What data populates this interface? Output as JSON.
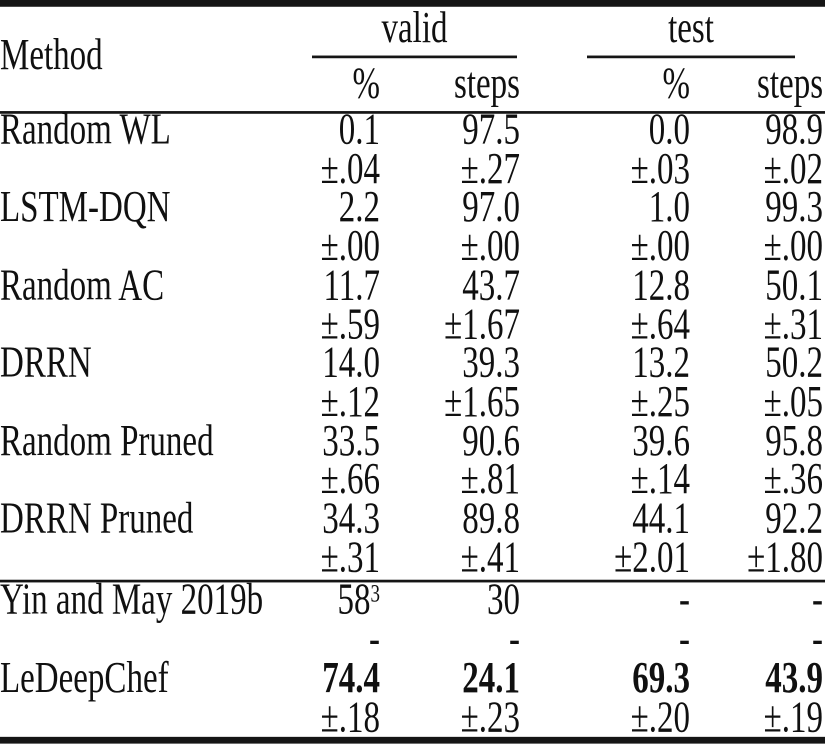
{
  "page": {
    "background": "#ffffff",
    "text_color": "#101010",
    "rule_color": "#151515"
  },
  "table": {
    "header": {
      "method_label": "Method",
      "group_valid_label": "valid",
      "group_test_label": "test",
      "sub_valid_pct": "%",
      "sub_valid_steps": "steps",
      "sub_test_pct": "%",
      "sub_test_steps": "steps"
    },
    "columns": [
      "Method",
      "valid %",
      "valid steps",
      "test %",
      "test steps"
    ],
    "sections": [
      {
        "rows": [
          {
            "method": "Random WL",
            "cells": [
              "0.1",
              "97.5",
              "0.0",
              "98.9"
            ]
          },
          {
            "method": "",
            "cells": [
              "±.04",
              "±.27",
              "±.03",
              "±.02"
            ]
          },
          {
            "method": "LSTM-DQN",
            "cells": [
              "2.2",
              "97.0",
              "1.0",
              "99.3"
            ]
          },
          {
            "method": "",
            "cells": [
              "±.00",
              "±.00",
              "±.00",
              "±.00"
            ]
          },
          {
            "method": "Random AC",
            "cells": [
              "11.7",
              "43.7",
              "12.8",
              "50.1"
            ]
          },
          {
            "method": "",
            "cells": [
              "±.59",
              "±1.67",
              "±.64",
              "±.31"
            ]
          },
          {
            "method": "DRRN",
            "cells": [
              "14.0",
              "39.3",
              "13.2",
              "50.2"
            ]
          },
          {
            "method": "",
            "cells": [
              "±.12",
              "±1.65",
              "±.25",
              "±.05"
            ]
          },
          {
            "method": "Random Pruned",
            "cells": [
              "33.5",
              "90.6",
              "39.6",
              "95.8"
            ]
          },
          {
            "method": "",
            "cells": [
              "±.66",
              "±.81",
              "±.14",
              "±.36"
            ]
          },
          {
            "method": "DRRN Pruned",
            "cells": [
              "34.3",
              "89.8",
              "44.1",
              "92.2"
            ]
          },
          {
            "method": "",
            "cells": [
              "±.31",
              "±.41",
              "±2.01",
              "±1.80"
            ]
          }
        ]
      },
      {
        "rows": [
          {
            "method": "Yin and May 2019b",
            "cells": [
              "58",
              "30",
              "-",
              "-"
            ],
            "sups": [
              "3",
              "",
              "",
              ""
            ]
          },
          {
            "method": "",
            "cells": [
              "-",
              "-",
              "-",
              "-"
            ]
          },
          {
            "method": "LeDeepChef",
            "cells": [
              "74.4",
              "24.1",
              "69.3",
              "43.9"
            ],
            "bold": true
          },
          {
            "method": "",
            "cells": [
              "±.18",
              "±.23",
              "±.20",
              "±.19"
            ]
          }
        ]
      }
    ]
  }
}
